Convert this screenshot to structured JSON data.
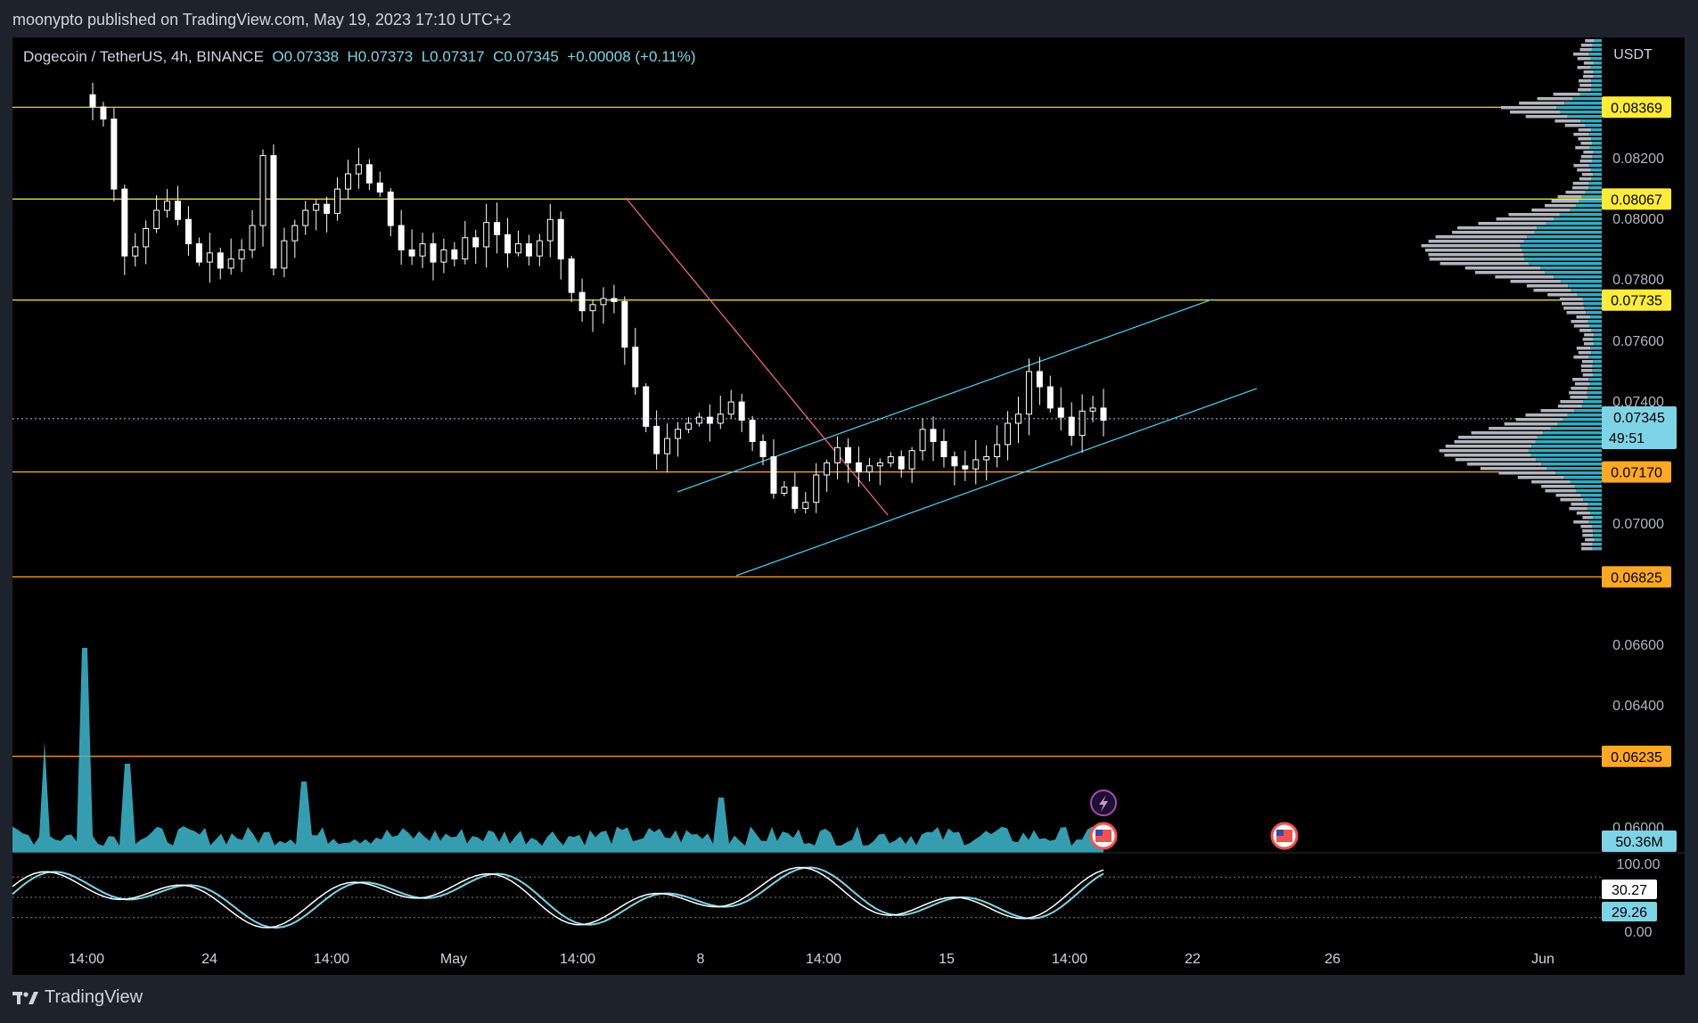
{
  "header": {
    "published": "moonypto published on TradingView.com, May 19, 2023 17:10 UTC+2"
  },
  "symbol": {
    "name": "Dogecoin / TetherUS, 4h, BINANCE",
    "open": "O0.07338",
    "high": "H0.07373",
    "low": "L0.07317",
    "close": "C0.07345",
    "change": "+0.00008 (+0.11%)"
  },
  "price_axis": {
    "currency": "USDT",
    "ticks": [
      "0.08200",
      "0.08000",
      "0.07800",
      "0.07600",
      "0.07400",
      "0.07000",
      "0.06600",
      "0.06400",
      "0.06000"
    ],
    "tick_values": [
      0.082,
      0.08,
      0.078,
      0.076,
      0.074,
      0.07,
      0.066,
      0.064,
      0.06
    ],
    "current_price": "0.07345",
    "countdown": "49:51",
    "volume_label": "50.36M"
  },
  "levels": [
    {
      "label": "0.08369",
      "value": 0.08369,
      "color": "#ffeb3b"
    },
    {
      "label": "0.08067",
      "value": 0.08067,
      "color": "#ffeb3b"
    },
    {
      "label": "0.07735",
      "value": 0.07735,
      "color": "#ffeb3b"
    },
    {
      "label": "0.07170",
      "value": 0.0717,
      "color": "#ffa726"
    },
    {
      "label": "0.06825",
      "value": 0.06825,
      "color": "#ffa726"
    },
    {
      "label": "0.06235",
      "value": 0.06235,
      "color": "#ffa726"
    }
  ],
  "oscillator": {
    "ticks": [
      "100.00",
      "0.00"
    ],
    "k_label": "30.27",
    "d_label": "29.26",
    "k_value": 30.27,
    "d_value": 29.26
  },
  "time_axis": {
    "labels": [
      "14:00",
      "24",
      "14:00",
      "May",
      "14:00",
      "8",
      "14:00",
      "15",
      "14:00",
      "22",
      "26",
      "Jun"
    ]
  },
  "footer": {
    "brand": "TradingView"
  },
  "colors": {
    "background": "#000000",
    "candle": "#ffffff",
    "accent": "#7fd3e6",
    "channel": "#4fc3e8",
    "trendline": "#f06292",
    "level_yellow": "#ffeb3b",
    "level_orange": "#ffa726"
  },
  "chart_data": {
    "type": "candlestick",
    "title": "Dogecoin / TetherUS, 4h, BINANCE",
    "ylabel": "USDT",
    "ylim": [
      0.059,
      0.0866
    ],
    "close_series": [
      0.0837,
      0.0833,
      0.081,
      0.0788,
      0.0791,
      0.0797,
      0.0803,
      0.0806,
      0.08,
      0.0792,
      0.0786,
      0.0789,
      0.0784,
      0.0787,
      0.079,
      0.0798,
      0.0821,
      0.0784,
      0.0793,
      0.0798,
      0.0803,
      0.0805,
      0.0802,
      0.081,
      0.0815,
      0.0818,
      0.0812,
      0.0809,
      0.0798,
      0.079,
      0.0788,
      0.0792,
      0.0786,
      0.079,
      0.0787,
      0.0794,
      0.0791,
      0.0799,
      0.0795,
      0.0789,
      0.0792,
      0.0788,
      0.0793,
      0.08,
      0.0787,
      0.0776,
      0.077,
      0.0772,
      0.0774,
      0.0773,
      0.0758,
      0.0745,
      0.0732,
      0.0723,
      0.0728,
      0.0731,
      0.0733,
      0.0735,
      0.0733,
      0.0736,
      0.074,
      0.0734,
      0.0727,
      0.0722,
      0.071,
      0.0712,
      0.0705,
      0.0707,
      0.0716,
      0.072,
      0.0725,
      0.072,
      0.0717,
      0.0719,
      0.072,
      0.0722,
      0.0718,
      0.0724,
      0.0731,
      0.0727,
      0.0722,
      0.0719,
      0.0718,
      0.0721,
      0.0722,
      0.0726,
      0.0733,
      0.0736,
      0.075,
      0.0745,
      0.0738,
      0.0735,
      0.0729,
      0.0737,
      0.0738,
      0.0734
    ]
  }
}
